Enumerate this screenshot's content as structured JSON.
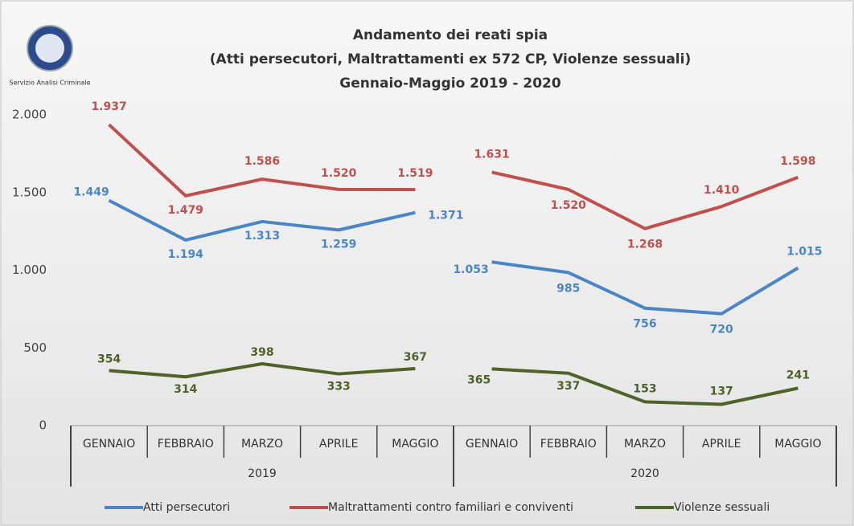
{
  "chart_data": {
    "type": "line",
    "logo_text": "Servizio Analisi Criminale",
    "title": [
      "Andamento dei reati spia",
      "(Atti persecutori, Maltrattamenti ex 572 CP, Violenze sessuali)",
      "Gennaio-Maggio 2019 - 2020"
    ],
    "groups": [
      {
        "name": "2019",
        "categories": [
          "GENNAIO",
          "FEBBRAIO",
          "MARZO",
          "APRILE",
          "MAGGIO"
        ]
      },
      {
        "name": "2020",
        "categories": [
          "GENNAIO",
          "FEBBRAIO",
          "MARZO",
          "APRILE",
          "MAGGIO"
        ]
      }
    ],
    "ylim": [
      0,
      2000
    ],
    "yticks": [
      0,
      500,
      {
        "value": 1000,
        "label": "1.000"
      },
      {
        "value": 1500,
        "label": "1.500"
      },
      {
        "value": 2000,
        "label": "2.000"
      }
    ],
    "grid": false,
    "legend": "bottom",
    "series": [
      {
        "name": "Atti persecutori",
        "color": "#4a86c5",
        "values": [
          1449,
          1194,
          1313,
          1259,
          1371,
          1053,
          985,
          756,
          720,
          1015
        ],
        "value_labels": [
          "1.449",
          "1.194",
          "1.313",
          "1.259",
          "1.371",
          "1.053",
          "985",
          "756",
          "720",
          "1.015"
        ]
      },
      {
        "name": "Maltrattamenti contro familiari e conviventi",
        "color": "#c0504d",
        "values": [
          1937,
          1479,
          1586,
          1520,
          1519,
          1631,
          1520,
          1268,
          1410,
          1598
        ],
        "value_labels": [
          "1.937",
          "1.479",
          "1.586",
          "1.520",
          "1.519",
          "1.631",
          "1.520",
          "1.268",
          "1.410",
          "1.598"
        ]
      },
      {
        "name": "Violenze sessuali",
        "color": "#4f6228",
        "values": [
          354,
          314,
          398,
          333,
          367,
          365,
          337,
          153,
          137,
          241
        ]
      }
    ]
  }
}
